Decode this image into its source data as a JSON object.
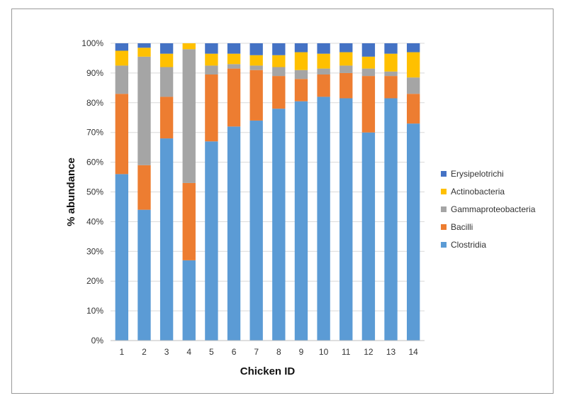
{
  "chart_data": {
    "type": "bar",
    "stacked": true,
    "xlabel": "Chicken ID",
    "ylabel": "% abundance",
    "ylim": [
      0,
      100
    ],
    "yticks": [
      "0%",
      "10%",
      "20%",
      "30%",
      "40%",
      "50%",
      "60%",
      "70%",
      "80%",
      "90%",
      "100%"
    ],
    "grid": true,
    "legend_position": "right",
    "categories": [
      "1",
      "2",
      "3",
      "4",
      "5",
      "6",
      "7",
      "8",
      "9",
      "10",
      "11",
      "12",
      "13",
      "14"
    ],
    "series": [
      {
        "name": "Clostridia",
        "color": "#5b9bd5",
        "values": [
          56,
          44,
          68,
          27,
          67,
          72,
          74,
          78,
          80.5,
          82,
          81.5,
          70,
          81.5,
          73
        ]
      },
      {
        "name": "Bacilli",
        "color": "#ed7d31",
        "values": [
          27,
          15,
          14,
          26,
          22.5,
          19.5,
          17,
          11,
          7.5,
          7.5,
          8.5,
          19,
          7.5,
          10
        ]
      },
      {
        "name": "Gammaproteobacteria",
        "color": "#a5a5a5",
        "values": [
          9.5,
          36.5,
          10,
          45,
          3,
          1.5,
          1.5,
          3,
          3,
          2,
          2.5,
          2.5,
          1.5,
          5.5
        ]
      },
      {
        "name": "Actinobacteria",
        "color": "#ffc000",
        "values": [
          5,
          3,
          4.5,
          2,
          4,
          3.5,
          3.5,
          4,
          6,
          5,
          4.5,
          4,
          6,
          8.5
        ]
      },
      {
        "name": "Erysipelotrichi",
        "color": "#4472c4",
        "values": [
          2.5,
          1.5,
          3.5,
          0,
          3.5,
          3.5,
          4,
          4,
          3,
          3.5,
          3,
          4.5,
          3.5,
          3
        ]
      }
    ]
  }
}
